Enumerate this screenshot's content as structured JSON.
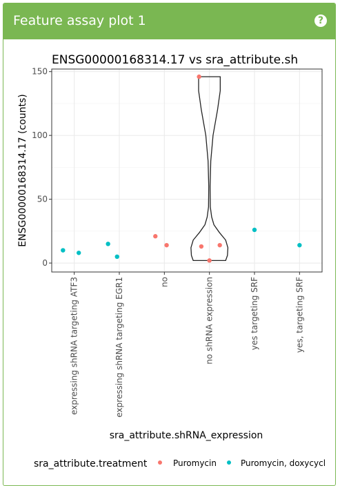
{
  "panel": {
    "title": "Feature assay plot 1",
    "help_icon": "question-circle-icon",
    "help_glyph": "?",
    "accent_color": "#7ab752"
  },
  "chart_data": {
    "type": "violin-strip",
    "title": "ENSG00000168314.17 vs sra_attribute.sh",
    "xlabel": "sra_attribute.shRNA_expression",
    "ylabel": "ENSG00000168314.17 (counts)",
    "ylim": [
      -7,
      152
    ],
    "yticks": [
      0,
      50,
      100,
      150
    ],
    "grid": true,
    "categories": [
      "expressing shRNA targeting ATF3",
      "expressing shRNA targeting EGR1",
      "no",
      "no shRNA expression",
      "yes targeting SRF",
      "yes, targeting SRF"
    ],
    "legend": {
      "title": "sra_attribute.treatment",
      "placement": "bottom",
      "entries": [
        {
          "label": "Puromycin",
          "color": "#f8766d"
        },
        {
          "label": "Puromycin, doxycycl",
          "color": "#00bfc4"
        }
      ]
    },
    "points": [
      {
        "category": 0,
        "offset": -0.25,
        "y": 10,
        "group": 1
      },
      {
        "category": 0,
        "offset": 0.1,
        "y": 8,
        "group": 1
      },
      {
        "category": 1,
        "offset": -0.25,
        "y": 15,
        "group": 1
      },
      {
        "category": 1,
        "offset": -0.05,
        "y": 5,
        "group": 1
      },
      {
        "category": 2,
        "offset": -0.2,
        "y": 21,
        "group": 0
      },
      {
        "category": 2,
        "offset": 0.05,
        "y": 14,
        "group": 0
      },
      {
        "category": 3,
        "offset": -0.23,
        "y": 146,
        "group": 0
      },
      {
        "category": 3,
        "offset": -0.18,
        "y": 13,
        "group": 0
      },
      {
        "category": 3,
        "offset": 0.0,
        "y": 2,
        "group": 0
      },
      {
        "category": 3,
        "offset": 0.23,
        "y": 14,
        "group": 0
      },
      {
        "category": 4,
        "offset": 0.0,
        "y": 26,
        "group": 1
      },
      {
        "category": 5,
        "offset": 0.0,
        "y": 14,
        "group": 1
      }
    ],
    "violin": {
      "category": 3,
      "profile": [
        {
          "y": 2,
          "w": 0.36
        },
        {
          "y": 6,
          "w": 0.4
        },
        {
          "y": 12,
          "w": 0.41
        },
        {
          "y": 18,
          "w": 0.36
        },
        {
          "y": 24,
          "w": 0.22
        },
        {
          "y": 30,
          "w": 0.1
        },
        {
          "y": 36,
          "w": 0.05
        },
        {
          "y": 44,
          "w": 0.02
        },
        {
          "y": 60,
          "w": 0.015
        },
        {
          "y": 80,
          "w": 0.03
        },
        {
          "y": 100,
          "w": 0.08
        },
        {
          "y": 120,
          "w": 0.18
        },
        {
          "y": 135,
          "w": 0.24
        },
        {
          "y": 146,
          "w": 0.24
        }
      ]
    }
  }
}
